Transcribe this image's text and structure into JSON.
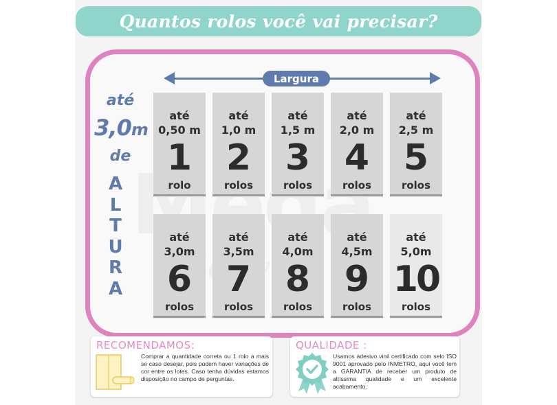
{
  "banner": {
    "title": "Quantos rolos você vai precisar?"
  },
  "width_label": "Largura",
  "height": {
    "ate": "até",
    "value": "3,0",
    "unit": "m",
    "de": "de",
    "word_letters": [
      "A",
      "L",
      "T",
      "U",
      "R",
      "A"
    ]
  },
  "cards": [
    {
      "ate": "até",
      "size": "0,50 m",
      "count": "1",
      "unit": "rolo"
    },
    {
      "ate": "até",
      "size": "1,0 m",
      "count": "2",
      "unit": "rolos"
    },
    {
      "ate": "até",
      "size": "1,5 m",
      "count": "3",
      "unit": "rolos"
    },
    {
      "ate": "até",
      "size": "2,0 m",
      "count": "4",
      "unit": "rolos"
    },
    {
      "ate": "até",
      "size": "2,5 m",
      "count": "5",
      "unit": "rolos"
    },
    {
      "ate": "até",
      "size": "3,0m",
      "count": "6",
      "unit": "rolos"
    },
    {
      "ate": "até",
      "size": "3,5m",
      "count": "7",
      "unit": "rolos"
    },
    {
      "ate": "até",
      "size": "4,0m",
      "count": "8",
      "unit": "rolos"
    },
    {
      "ate": "até",
      "size": "4,5m",
      "count": "9",
      "unit": "rolos"
    },
    {
      "ate": "até",
      "size": "5,0m",
      "count": "10",
      "unit": "rolos"
    }
  ],
  "recommend": {
    "title": "RECOMENDAMOS:",
    "text": "Comprar a quantidade correta ou 1 rolo a mais se caso desejar, pois podem haver variações de cor entre os lotes. Caso tenha dúvidas estamos disposição no campo de perguntas."
  },
  "quality": {
    "title": "QUALIDADE :",
    "text": "Usamos adesivo vinil certificado com selo ISO 9001 aprovado pelo INMETRO, aqui você tem a GARANTIA de receber um produto de altíssima qualidade e um excelente acabamento."
  },
  "colors": {
    "banner": "#8fd5cc",
    "frame": "#de83bf",
    "accent_blue": "#5f7bab",
    "card": "#d6d6d6",
    "title_pink": "#e58bc3"
  },
  "icons": {
    "recommend": "wall-roll-icon",
    "quality": "quality-badge-icon"
  }
}
